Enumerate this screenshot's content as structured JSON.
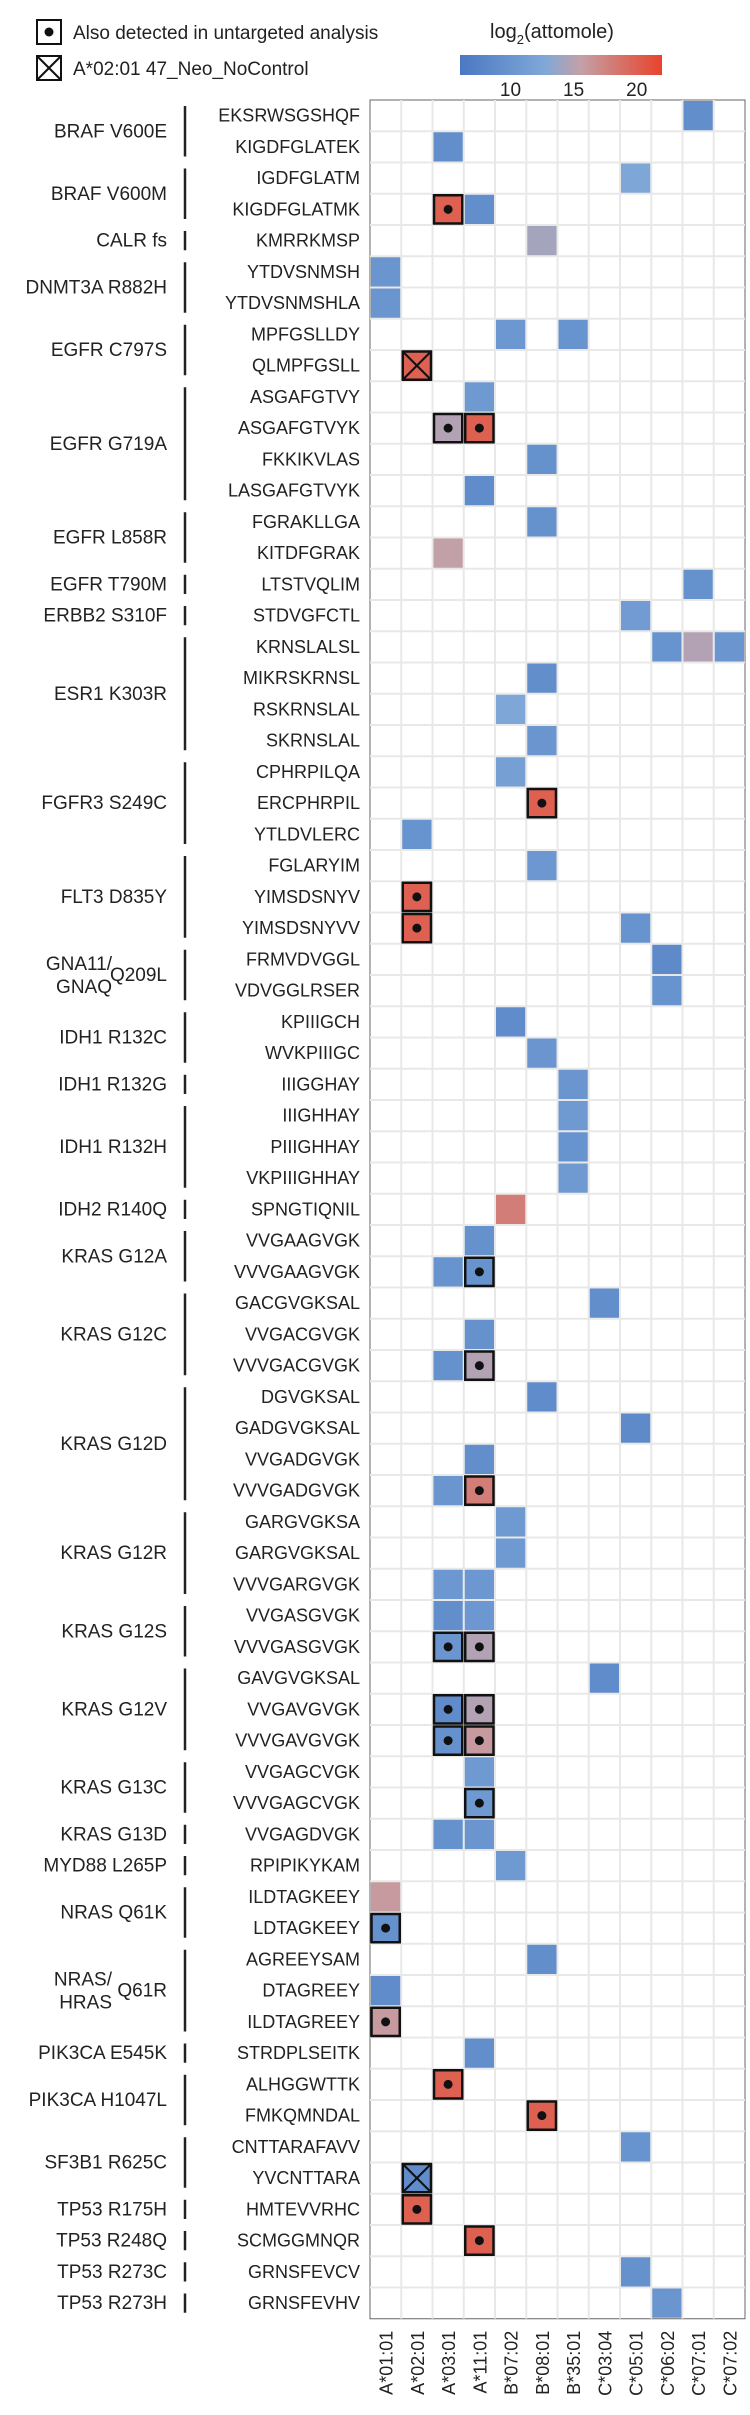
{
  "legend": {
    "marker_detected_label": "Also detected in untargeted analysis",
    "marker_cross_label": "A*02:01 47_Neo_NoControl",
    "colorbar_title": "log",
    "colorbar_title_sub": "2",
    "colorbar_title_rest": "(attomole)",
    "colorbar_ticks": [
      "10",
      "15",
      "20"
    ],
    "colorbar_range": [
      6,
      22
    ],
    "colorbar_tick_values": [
      10,
      15,
      20
    ]
  },
  "colors": {
    "low": "#4a78c2",
    "mid": "#c4a0a6",
    "high": "#e8432b",
    "grid": "#e8e8e8",
    "border": "#111111"
  },
  "chart_data": {
    "type": "heatmap",
    "value_label": "log2(attomole)",
    "columns": [
      "A*01:01",
      "A*02:01",
      "A*03:01",
      "A*11:01",
      "B*07:02",
      "B*08:01",
      "B*35:01",
      "C*03:04",
      "C*05:01",
      "C*06:02",
      "C*07:01",
      "C*07:02"
    ],
    "groups": [
      {
        "label": [
          "BRAF V600E"
        ],
        "rows": [
          "EKSRWSGSHQF",
          "KIGDFGLATEK"
        ]
      },
      {
        "label": [
          "BRAF V600M"
        ],
        "rows": [
          "IGDFGLATM",
          "KIGDFGLATMK"
        ]
      },
      {
        "label": [
          "CALR fs"
        ],
        "rows": [
          "KMRRKMSP"
        ]
      },
      {
        "label": [
          "DNMT3A R882H"
        ],
        "rows": [
          "YTDVSNMSH",
          "YTDVSNMSHLA"
        ]
      },
      {
        "label": [
          "EGFR C797S"
        ],
        "rows": [
          "MPFGSLLDY",
          "QLMPFGSLL"
        ]
      },
      {
        "label": [
          "EGFR G719A"
        ],
        "rows": [
          "ASGAFGTVY",
          "ASGAFGTVYK",
          "FKKIKVLAS",
          "LASGAFGTVYK"
        ]
      },
      {
        "label": [
          "EGFR L858R"
        ],
        "rows": [
          "FGRAKLLGA",
          "KITDFGRAK"
        ]
      },
      {
        "label": [
          "EGFR T790M"
        ],
        "rows": [
          "LTSTVQLIM"
        ]
      },
      {
        "label": [
          "ERBB2 S310F"
        ],
        "rows": [
          "STDVGFCTL"
        ]
      },
      {
        "label": [
          "ESR1 K303R"
        ],
        "rows": [
          "KRNSLALSL",
          "MIKRSKRNSL",
          "RSKRNSLAL",
          "SKRNSLAL"
        ]
      },
      {
        "label": [
          "FGFR3 S249C"
        ],
        "rows": [
          "CPHRPILQA",
          "ERCPHRPIL",
          "YTLDVLERC"
        ]
      },
      {
        "label": [
          "FLT3 D835Y"
        ],
        "rows": [
          "FGLARYIM",
          "YIMSDSNYV",
          "YIMSDSNYVV"
        ]
      },
      {
        "label": [
          "GNA11/",
          "GNAQ Q209L"
        ],
        "rows": [
          "FRMVDVGGL",
          "VDVGGLRSER"
        ]
      },
      {
        "label": [
          "IDH1 R132C"
        ],
        "rows": [
          "KPIIIGCH",
          "WVKPIIIGC"
        ]
      },
      {
        "label": [
          "IDH1 R132G"
        ],
        "rows": [
          "IIIGGHAY"
        ]
      },
      {
        "label": [
          "IDH1 R132H"
        ],
        "rows": [
          "IIIGHHAY",
          "PIIIGHHAY",
          "VKPIIIGHHAY"
        ]
      },
      {
        "label": [
          "IDH2 R140Q"
        ],
        "rows": [
          "SPNGTIQNIL"
        ]
      },
      {
        "label": [
          "KRAS G12A"
        ],
        "rows": [
          "VVGAAGVGK",
          "VVVGAAGVGK"
        ]
      },
      {
        "label": [
          "KRAS G12C"
        ],
        "rows": [
          "GACGVGKSAL",
          "VVGACGVGK",
          "VVVGACGVGK"
        ]
      },
      {
        "label": [
          "KRAS G12D"
        ],
        "rows": [
          "DGVGKSAL",
          "GADGVGKSAL",
          "VVGADGVGK",
          "VVVGADGVGK"
        ]
      },
      {
        "label": [
          "KRAS G12R"
        ],
        "rows": [
          "GARGVGKSA",
          "GARGVGKSAL",
          "VVVGARGVGK"
        ]
      },
      {
        "label": [
          "KRAS G12S"
        ],
        "rows": [
          "VVGASGVGK",
          "VVVGASGVGK"
        ]
      },
      {
        "label": [
          "KRAS G12V"
        ],
        "rows": [
          "GAVGVGKSAL",
          "VVGAVGVGK",
          "VVVGAVGVGK"
        ]
      },
      {
        "label": [
          "KRAS G13C"
        ],
        "rows": [
          "VVGAGCVGK",
          "VVVGAGCVGK"
        ]
      },
      {
        "label": [
          "KRAS G13D"
        ],
        "rows": [
          "VVGAGDVGK"
        ]
      },
      {
        "label": [
          "MYD88 L265P"
        ],
        "rows": [
          "RPIPIKYKAM"
        ]
      },
      {
        "label": [
          "NRAS Q61K"
        ],
        "rows": [
          "ILDTAGKEEY",
          "LDTAGKEEY"
        ]
      },
      {
        "label": [
          "NRAS/",
          "HRAS Q61R"
        ],
        "rows": [
          "AGREEYSAM",
          "DTAGREEY",
          "ILDTAGREEY"
        ]
      },
      {
        "label": [
          "PIK3CA E545K"
        ],
        "rows": [
          "STRDPLSEITK"
        ]
      },
      {
        "label": [
          "PIK3CA H1047L"
        ],
        "rows": [
          "ALHGGWTTK",
          "FMKQMNDAL"
        ]
      },
      {
        "label": [
          "SF3B1 R625C"
        ],
        "rows": [
          "CNTTARAFAVV",
          "YVCNTTARA"
        ]
      },
      {
        "label": [
          "TP53 R175H"
        ],
        "rows": [
          "HMTEVVRHC"
        ]
      },
      {
        "label": [
          "TP53 R248Q"
        ],
        "rows": [
          "SCMGGMNQR"
        ]
      },
      {
        "label": [
          "TP53 R273C"
        ],
        "rows": [
          "GRNSFEVCV"
        ]
      },
      {
        "label": [
          "TP53 R273H"
        ],
        "rows": [
          "GRNSFEVHV"
        ]
      }
    ],
    "cells": [
      {
        "row": "EKSRWSGSHQF",
        "col": "C*07:01",
        "value": 9.3
      },
      {
        "row": "KIGDFGLATEK",
        "col": "A*03:01",
        "value": 9.3
      },
      {
        "row": "IGDFGLATM",
        "col": "C*05:01",
        "value": 13.0
      },
      {
        "row": "KIGDFGLATMK",
        "col": "A*03:01",
        "value": 20.0,
        "detected": true
      },
      {
        "row": "KIGDFGLATMK",
        "col": "A*11:01",
        "value": 9.3
      },
      {
        "row": "KMRRKMSP",
        "col": "B*08:01",
        "value": 14.5
      },
      {
        "row": "YTDVSNMSH",
        "col": "A*01:01",
        "value": 10.3
      },
      {
        "row": "YTDVSNMSHLA",
        "col": "A*01:01",
        "value": 10.3
      },
      {
        "row": "MPFGSLLDY",
        "col": "B*07:02",
        "value": 10.7
      },
      {
        "row": "MPFGSLLDY",
        "col": "B*35:01",
        "value": 10.0
      },
      {
        "row": "QLMPFGSLL",
        "col": "A*02:01",
        "value": 20.0,
        "cross": true
      },
      {
        "row": "ASGAFGTVY",
        "col": "A*11:01",
        "value": 11.0
      },
      {
        "row": "ASGAFGTVYK",
        "col": "A*03:01",
        "value": 15.0,
        "detected": true
      },
      {
        "row": "ASGAFGTVYK",
        "col": "A*11:01",
        "value": 20.0,
        "detected": true
      },
      {
        "row": "FKKIKVLAS",
        "col": "B*08:01",
        "value": 9.7
      },
      {
        "row": "LASGAFGTVYK",
        "col": "A*11:01",
        "value": 9.0
      },
      {
        "row": "FGRAKLLGA",
        "col": "B*08:01",
        "value": 9.7
      },
      {
        "row": "KITDFGRAK",
        "col": "A*03:01",
        "value": 15.5
      },
      {
        "row": "LTSTVQLIM",
        "col": "C*07:01",
        "value": 9.7
      },
      {
        "row": "STDVGFCTL",
        "col": "C*05:01",
        "value": 11.3
      },
      {
        "row": "KRNSLALSL",
        "col": "C*06:02",
        "value": 10.0
      },
      {
        "row": "KRNSLALSL",
        "col": "C*07:01",
        "value": 15.0
      },
      {
        "row": "KRNSLALSL",
        "col": "C*07:02",
        "value": 10.3
      },
      {
        "row": "MIKRSKRNSL",
        "col": "B*08:01",
        "value": 9.3
      },
      {
        "row": "RSKRNSLAL",
        "col": "B*07:02",
        "value": 13.0
      },
      {
        "row": "SKRNSLAL",
        "col": "B*08:01",
        "value": 10.3
      },
      {
        "row": "CPHRPILQA",
        "col": "B*07:02",
        "value": 12.0
      },
      {
        "row": "ERCPHRPIL",
        "col": "B*08:01",
        "value": 20.0,
        "detected": true
      },
      {
        "row": "YTLDVLERC",
        "col": "A*02:01",
        "value": 10.0
      },
      {
        "row": "FGLARYIM",
        "col": "B*08:01",
        "value": 10.7
      },
      {
        "row": "YIMSDSNYV",
        "col": "A*02:01",
        "value": 20.0,
        "detected": true
      },
      {
        "row": "YIMSDSNYVV",
        "col": "A*02:01",
        "value": 20.0,
        "detected": true
      },
      {
        "row": "YIMSDSNYVV",
        "col": "C*05:01",
        "value": 10.0
      },
      {
        "row": "FRMVDVGGL",
        "col": "C*06:02",
        "value": 8.7
      },
      {
        "row": "VDVGGLRSER",
        "col": "C*06:02",
        "value": 10.0
      },
      {
        "row": "KPIIIGCH",
        "col": "B*07:02",
        "value": 9.0
      },
      {
        "row": "WVKPIIIGC",
        "col": "B*08:01",
        "value": 10.3
      },
      {
        "row": "IIIGGHAY",
        "col": "B*35:01",
        "value": 10.3
      },
      {
        "row": "IIIGHHAY",
        "col": "B*35:01",
        "value": 11.0
      },
      {
        "row": "PIIIGHHAY",
        "col": "B*35:01",
        "value": 10.0
      },
      {
        "row": "VKPIIIGHHAY",
        "col": "B*35:01",
        "value": 11.0
      },
      {
        "row": "SPNGTIQNIL",
        "col": "B*07:02",
        "value": 18.0
      },
      {
        "row": "VVGAAGVGK",
        "col": "A*11:01",
        "value": 9.7
      },
      {
        "row": "VVVGAAGVGK",
        "col": "A*03:01",
        "value": 10.0
      },
      {
        "row": "VVVGAAGVGK",
        "col": "A*11:01",
        "value": 10.0,
        "detected": true
      },
      {
        "row": "GACGVGKSAL",
        "col": "C*03:04",
        "value": 9.3
      },
      {
        "row": "VVGACGVGK",
        "col": "A*11:01",
        "value": 9.7
      },
      {
        "row": "VVVGACGVGK",
        "col": "A*03:01",
        "value": 9.7
      },
      {
        "row": "VVVGACGVGK",
        "col": "A*11:01",
        "value": 15.0,
        "detected": true
      },
      {
        "row": "DGVGKSAL",
        "col": "B*08:01",
        "value": 9.0
      },
      {
        "row": "GADGVGKSAL",
        "col": "C*05:01",
        "value": 8.7
      },
      {
        "row": "VVGADGVGK",
        "col": "A*11:01",
        "value": 9.3
      },
      {
        "row": "VVVGADGVGK",
        "col": "A*03:01",
        "value": 10.3
      },
      {
        "row": "VVVGADGVGK",
        "col": "A*11:01",
        "value": 18.0,
        "detected": true
      },
      {
        "row": "GARGVGKSA",
        "col": "B*07:02",
        "value": 11.0
      },
      {
        "row": "GARGVGKSAL",
        "col": "B*07:02",
        "value": 11.0
      },
      {
        "row": "VVVGARGVGK",
        "col": "A*03:01",
        "value": 10.7
      },
      {
        "row": "VVVGARGVGK",
        "col": "A*11:01",
        "value": 10.7
      },
      {
        "row": "VVGASGVGK",
        "col": "A*03:01",
        "value": 9.3
      },
      {
        "row": "VVGASGVGK",
        "col": "A*11:01",
        "value": 10.7
      },
      {
        "row": "VVVGASGVGK",
        "col": "A*03:01",
        "value": 10.3,
        "detected": true
      },
      {
        "row": "VVVGASGVGK",
        "col": "A*11:01",
        "value": 15.0,
        "detected": true
      },
      {
        "row": "GAVGVGKSAL",
        "col": "C*03:04",
        "value": 9.0
      },
      {
        "row": "VVGAVGVGK",
        "col": "A*03:01",
        "value": 9.0,
        "detected": true
      },
      {
        "row": "VVGAVGVGK",
        "col": "A*11:01",
        "value": 15.0,
        "detected": true
      },
      {
        "row": "VVVGAVGVGK",
        "col": "A*03:01",
        "value": 9.7,
        "detected": true
      },
      {
        "row": "VVVGAVGVGK",
        "col": "A*11:01",
        "value": 16.0,
        "detected": true
      },
      {
        "row": "VVGAGCVGK",
        "col": "A*11:01",
        "value": 11.0
      },
      {
        "row": "VVVGAGCVGK",
        "col": "A*11:01",
        "value": 11.0,
        "detected": true
      },
      {
        "row": "VVGAGDVGK",
        "col": "A*03:01",
        "value": 9.7
      },
      {
        "row": "VVGAGDVGK",
        "col": "A*11:01",
        "value": 10.3
      },
      {
        "row": "RPIPIKYKAM",
        "col": "B*07:02",
        "value": 11.0
      },
      {
        "row": "ILDTAGKEEY",
        "col": "A*01:01",
        "value": 16.0
      },
      {
        "row": "LDTAGKEEY",
        "col": "A*01:01",
        "value": 9.7,
        "detected": true
      },
      {
        "row": "AGREEYSAM",
        "col": "B*08:01",
        "value": 9.3
      },
      {
        "row": "DTAGREEY",
        "col": "A*01:01",
        "value": 9.0
      },
      {
        "row": "ILDTAGREEY",
        "col": "A*01:01",
        "value": 16.0,
        "detected": true
      },
      {
        "row": "STRDPLSEITK",
        "col": "A*11:01",
        "value": 9.3
      },
      {
        "row": "ALHGGWTTK",
        "col": "A*03:01",
        "value": 20.0,
        "detected": true
      },
      {
        "row": "FMKQMNDAL",
        "col": "B*08:01",
        "value": 20.0,
        "detected": true
      },
      {
        "row": "CNTTARAFAVV",
        "col": "C*05:01",
        "value": 10.0
      },
      {
        "row": "YVCNTTARA",
        "col": "A*02:01",
        "value": 9.0,
        "cross": true
      },
      {
        "row": "HMTEVVRHC",
        "col": "A*02:01",
        "value": 20.0,
        "detected": true
      },
      {
        "row": "SCMGGMNQR",
        "col": "A*11:01",
        "value": 20.0,
        "detected": true
      },
      {
        "row": "GRNSFEVCV",
        "col": "C*05:01",
        "value": 9.7
      },
      {
        "row": "GRNSFEVHV",
        "col": "C*06:02",
        "value": 10.3
      }
    ]
  }
}
